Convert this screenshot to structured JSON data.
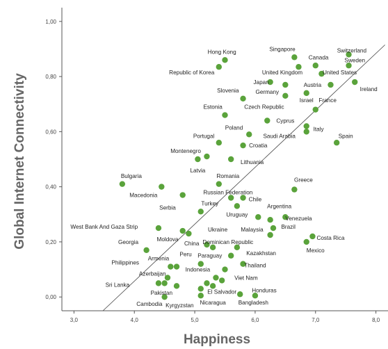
{
  "chart_data": {
    "type": "scatter",
    "xlabel": "Happiness",
    "ylabel": "Global Internet Connectivity",
    "xlim": [
      2.8,
      8.2
    ],
    "ylim": [
      -0.05,
      1.05
    ],
    "xticks": [
      "3,0",
      "4,0",
      "5,0",
      "6,0",
      "7,0",
      "8,0"
    ],
    "yticks": [
      "0,00",
      "0,20",
      "0,40",
      "0,60",
      "0,80",
      "1,00"
    ],
    "grid": false,
    "point_color": "#5aa33b",
    "line_color": "#444444",
    "trendline": {
      "x": [
        3.48,
        8.15
      ],
      "y": [
        -0.05,
        0.915
      ]
    },
    "points": [
      {
        "name": "Switzerland",
        "x": 7.55,
        "y": 0.88
      },
      {
        "name": "Singapore",
        "x": 6.65,
        "y": 0.87
      },
      {
        "name": "Canada",
        "x": 7.0,
        "y": 0.84
      },
      {
        "name": "Sweden",
        "x": 7.55,
        "y": 0.84
      },
      {
        "name": "Hong Kong",
        "x": 5.5,
        "y": 0.86
      },
      {
        "name": "Republic of Korea",
        "x": 5.4,
        "y": 0.835
      },
      {
        "name": "United Kingdom",
        "x": 6.72,
        "y": 0.835
      },
      {
        "name": "United States",
        "x": 7.1,
        "y": 0.81
      },
      {
        "name": "Japan",
        "x": 6.25,
        "y": 0.78
      },
      {
        "name": "Austria",
        "x": 6.5,
        "y": 0.77
      },
      {
        "name": "",
        "x": 7.25,
        "y": 0.77
      },
      {
        "name": "Ireland",
        "x": 7.65,
        "y": 0.78
      },
      {
        "name": "Germany",
        "x": 6.5,
        "y": 0.73
      },
      {
        "name": "Israel",
        "x": 6.85,
        "y": 0.74
      },
      {
        "name": "Slovenia",
        "x": 5.8,
        "y": 0.72
      },
      {
        "name": "France",
        "x": 7.0,
        "y": 0.68
      },
      {
        "name": "Czech Republic",
        "x": 5.5,
        "y": 0.66
      },
      {
        "name": "Estonia",
        "x": 6.2,
        "y": 0.64
      },
      {
        "name": "Italy",
        "x": 6.85,
        "y": 0.62
      },
      {
        "name": "Cyprus",
        "x": 6.85,
        "y": 0.6
      },
      {
        "name": "Poland",
        "x": 5.9,
        "y": 0.59
      },
      {
        "name": "Saudi Arabia",
        "x": 7.35,
        "y": 0.56
      },
      {
        "name": "Spain",
        "x": 5.4,
        "y": 0.56
      },
      {
        "name": "Portugal",
        "x": 5.8,
        "y": 0.55
      },
      {
        "name": "Croatia",
        "x": 5.2,
        "y": 0.51
      },
      {
        "name": "Montenegro",
        "x": 5.05,
        "y": 0.5
      },
      {
        "name": "Lithuania",
        "x": 5.6,
        "y": 0.5
      },
      {
        "name": "Latvia",
        "x": 3.8,
        "y": 0.41
      },
      {
        "name": "Bulgaria",
        "x": 5.4,
        "y": 0.41
      },
      {
        "name": "Romania",
        "x": 4.45,
        "y": 0.4
      },
      {
        "name": "Greece",
        "x": 6.65,
        "y": 0.39
      },
      {
        "name": "Macedonia",
        "x": 4.8,
        "y": 0.37
      },
      {
        "name": "Russian Federation",
        "x": 5.6,
        "y": 0.36
      },
      {
        "name": "Chile",
        "x": 5.8,
        "y": 0.36
      },
      {
        "name": "Turkey",
        "x": 5.7,
        "y": 0.33
      },
      {
        "name": "Argentina",
        "x": 5.1,
        "y": 0.31
      },
      {
        "name": "Serbia",
        "x": 6.05,
        "y": 0.29
      },
      {
        "name": "Uruguay",
        "x": 6.5,
        "y": 0.29
      },
      {
        "name": "Venezuela",
        "x": 6.25,
        "y": 0.28
      },
      {
        "name": "Brazil",
        "x": 6.3,
        "y": 0.25
      },
      {
        "name": "West Bank And Gaza Strip",
        "x": 4.4,
        "y": 0.25
      },
      {
        "name": "Ukraine",
        "x": 4.8,
        "y": 0.24
      },
      {
        "name": "Malaysia",
        "x": 4.9,
        "y": 0.23
      },
      {
        "name": "",
        "x": 6.25,
        "y": 0.225
      },
      {
        "name": "Costa Rica",
        "x": 6.95,
        "y": 0.22
      },
      {
        "name": "Moldova",
        "x": 6.85,
        "y": 0.2
      },
      {
        "name": "Georgia",
        "x": 5.2,
        "y": 0.19
      },
      {
        "name": "China",
        "x": 5.3,
        "y": 0.18
      },
      {
        "name": "Mexico",
        "x": 5.7,
        "y": 0.18
      },
      {
        "name": "Dominican Republic",
        "x": 4.2,
        "y": 0.17
      },
      {
        "name": "Kazakhstan",
        "x": 5.6,
        "y": 0.15
      },
      {
        "name": "Armenia",
        "x": 5.1,
        "y": 0.12
      },
      {
        "name": "Peru",
        "x": 5.8,
        "y": 0.12
      },
      {
        "name": "Philippines",
        "x": 4.6,
        "y": 0.11
      },
      {
        "name": "Paraguay",
        "x": 4.7,
        "y": 0.11
      },
      {
        "name": "Indonesia",
        "x": 5.5,
        "y": 0.1
      },
      {
        "name": "Thailand",
        "x": 4.55,
        "y": 0.07
      },
      {
        "name": "Azerbaijan",
        "x": 5.35,
        "y": 0.07
      },
      {
        "name": "Viet Nam",
        "x": 4.4,
        "y": 0.05
      },
      {
        "name": "Sri Lanka",
        "x": 4.5,
        "y": 0.05
      },
      {
        "name": "",
        "x": 5.2,
        "y": 0.05
      },
      {
        "name": "Honduras",
        "x": 5.45,
        "y": 0.06
      },
      {
        "name": "",
        "x": 4.7,
        "y": 0.04
      },
      {
        "name": "El Salvador",
        "x": 5.1,
        "y": 0.03
      },
      {
        "name": "Pakistan",
        "x": 5.3,
        "y": 0.04
      },
      {
        "name": "Cambodia",
        "x": 4.5,
        "y": 0.0
      },
      {
        "name": "Kyrgyzstan",
        "x": 5.1,
        "y": 0.005
      },
      {
        "name": "Nicaragua",
        "x": 6.0,
        "y": 0.005
      },
      {
        "name": "Bangladesh",
        "x": 5.75,
        "y": 0.01
      }
    ],
    "labels": [
      {
        "text": "Switzerland",
        "x": 7.6,
        "y": 0.895
      },
      {
        "text": "Singapore",
        "x": 6.45,
        "y": 0.9
      },
      {
        "text": "Canada",
        "x": 7.05,
        "y": 0.87
      },
      {
        "text": "Sweden",
        "x": 7.65,
        "y": 0.86
      },
      {
        "text": "Hong Kong",
        "x": 5.45,
        "y": 0.89
      },
      {
        "text": "Republic of Korea",
        "x": 4.95,
        "y": 0.815
      },
      {
        "text": "United Kingdom",
        "x": 6.45,
        "y": 0.815
      },
      {
        "text": "United States",
        "x": 7.4,
        "y": 0.815
      },
      {
        "text": "Japan",
        "x": 6.1,
        "y": 0.78
      },
      {
        "text": "Austria",
        "x": 6.95,
        "y": 0.77
      },
      {
        "text": "Ireland",
        "x": 7.88,
        "y": 0.755
      },
      {
        "text": "Germany",
        "x": 6.2,
        "y": 0.745
      },
      {
        "text": "Israel",
        "x": 6.85,
        "y": 0.715
      },
      {
        "text": "Slovenia",
        "x": 5.55,
        "y": 0.75
      },
      {
        "text": "France",
        "x": 7.2,
        "y": 0.715
      },
      {
        "text": "Czech Republic",
        "x": 6.15,
        "y": 0.69
      },
      {
        "text": "Estonia",
        "x": 5.3,
        "y": 0.69
      },
      {
        "text": "Italy",
        "x": 7.05,
        "y": 0.61
      },
      {
        "text": "Cyprus",
        "x": 6.5,
        "y": 0.64
      },
      {
        "text": "Poland",
        "x": 5.65,
        "y": 0.615
      },
      {
        "text": "Saudi Arabia",
        "x": 6.4,
        "y": 0.585
      },
      {
        "text": "Spain",
        "x": 7.5,
        "y": 0.585
      },
      {
        "text": "Portugal",
        "x": 5.15,
        "y": 0.585
      },
      {
        "text": "Croatia",
        "x": 6.05,
        "y": 0.55
      },
      {
        "text": "Montenegro",
        "x": 4.85,
        "y": 0.53
      },
      {
        "text": "Lithuania",
        "x": 5.95,
        "y": 0.49
      },
      {
        "text": "Latvia",
        "x": 5.05,
        "y": 0.46
      },
      {
        "text": "Bulgaria",
        "x": 3.95,
        "y": 0.44
      },
      {
        "text": "Romania",
        "x": 5.55,
        "y": 0.44
      },
      {
        "text": "Greece",
        "x": 6.8,
        "y": 0.425
      },
      {
        "text": "Macedonia",
        "x": 4.15,
        "y": 0.37
      },
      {
        "text": "Russian Federation",
        "x": 5.55,
        "y": 0.38
      },
      {
        "text": "Chile",
        "x": 6.0,
        "y": 0.355
      },
      {
        "text": "Turkey",
        "x": 5.25,
        "y": 0.34
      },
      {
        "text": "Argentina",
        "x": 6.4,
        "y": 0.33
      },
      {
        "text": "Serbia",
        "x": 4.55,
        "y": 0.325
      },
      {
        "text": "Uruguay",
        "x": 5.7,
        "y": 0.3
      },
      {
        "text": "Venezuela",
        "x": 6.72,
        "y": 0.285
      },
      {
        "text": "Brazil",
        "x": 6.55,
        "y": 0.255
      },
      {
        "text": "West Bank And Gaza Strip",
        "x": 3.5,
        "y": 0.255
      },
      {
        "text": "Ukraine",
        "x": 5.38,
        "y": 0.245
      },
      {
        "text": "Malaysia",
        "x": 5.95,
        "y": 0.245
      },
      {
        "text": "Costa Rica",
        "x": 7.25,
        "y": 0.215
      },
      {
        "text": "Moldova",
        "x": 4.55,
        "y": 0.21
      },
      {
        "text": "Georgia",
        "x": 3.9,
        "y": 0.2
      },
      {
        "text": "China",
        "x": 4.95,
        "y": 0.195
      },
      {
        "text": "Dominican Republic",
        "x": 5.55,
        "y": 0.2
      },
      {
        "text": "Mexico",
        "x": 7.0,
        "y": 0.17
      },
      {
        "text": "Kazakhstan",
        "x": 6.1,
        "y": 0.16
      },
      {
        "text": "Armenia",
        "x": 4.4,
        "y": 0.14
      },
      {
        "text": "Peru",
        "x": 4.85,
        "y": 0.155
      },
      {
        "text": "Philippines",
        "x": 3.85,
        "y": 0.125
      },
      {
        "text": "Paraguay",
        "x": 5.25,
        "y": 0.15
      },
      {
        "text": "Indonesia",
        "x": 5.05,
        "y": 0.1
      },
      {
        "text": "Thailand",
        "x": 6.0,
        "y": 0.115
      },
      {
        "text": "Azerbaijan",
        "x": 4.3,
        "y": 0.085
      },
      {
        "text": "Viet Nam",
        "x": 5.85,
        "y": 0.07
      },
      {
        "text": "Sri Lanka",
        "x": 3.72,
        "y": 0.045
      },
      {
        "text": "Honduras",
        "x": 6.15,
        "y": 0.025
      },
      {
        "text": "El Salvador",
        "x": 5.45,
        "y": 0.02
      },
      {
        "text": "Pakistan",
        "x": 4.45,
        "y": 0.015
      },
      {
        "text": "Cambodia",
        "x": 4.25,
        "y": -0.025
      },
      {
        "text": "Kyrgyzstan",
        "x": 4.75,
        "y": -0.03
      },
      {
        "text": "Nicaragua",
        "x": 5.3,
        "y": -0.02
      },
      {
        "text": "Bangladesh",
        "x": 5.97,
        "y": -0.02
      }
    ]
  }
}
